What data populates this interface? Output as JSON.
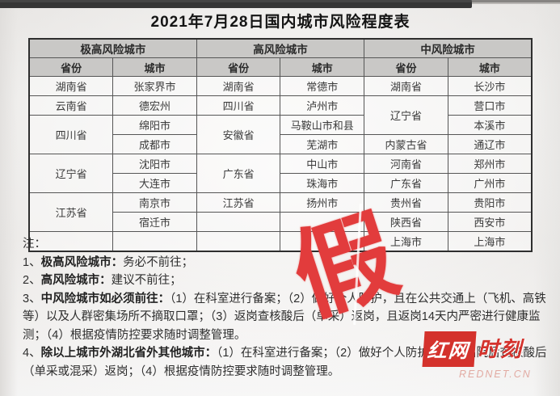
{
  "title": "2021年7月28日国内城市风险程度表",
  "table": {
    "group_headers": [
      "极高风险城市",
      "高风险城市",
      "中风险城市"
    ],
    "column_headers": [
      "省份",
      "城市",
      "省份",
      "城市",
      "省份",
      "城市"
    ],
    "rows": [
      [
        {
          "t": "湖南省"
        },
        {
          "t": "张家界市"
        },
        {
          "t": "湖南省"
        },
        {
          "t": "常德市"
        },
        {
          "t": "湖南省"
        },
        {
          "t": "长沙市"
        }
      ],
      [
        {
          "t": "云南省"
        },
        {
          "t": "德宏州"
        },
        {
          "t": "四川省"
        },
        {
          "t": "泸州市"
        },
        {
          "t": "辽宁省",
          "rs": 2
        },
        {
          "t": "营口市"
        }
      ],
      [
        {
          "t": "四川省",
          "rs": 2
        },
        {
          "t": "绵阳市"
        },
        {
          "t": "安徽省",
          "rs": 2
        },
        {
          "t": "马鞍山市和县"
        },
        null,
        {
          "t": "本溪市"
        }
      ],
      [
        null,
        {
          "t": "成都市"
        },
        null,
        {
          "t": "芜湖市"
        },
        {
          "t": "内蒙古省"
        },
        {
          "t": "通辽市"
        }
      ],
      [
        {
          "t": "辽宁省",
          "rs": 2
        },
        {
          "t": "沈阳市"
        },
        {
          "t": "广东省",
          "rs": 2
        },
        {
          "t": "中山市"
        },
        {
          "t": "河南省"
        },
        {
          "t": "郑州市"
        }
      ],
      [
        null,
        {
          "t": "大连市"
        },
        null,
        {
          "t": "珠海市"
        },
        {
          "t": "广东省"
        },
        {
          "t": "广州市"
        }
      ],
      [
        {
          "t": "江苏省",
          "rs": 2
        },
        {
          "t": "南京市"
        },
        {
          "t": "江苏省"
        },
        {
          "t": "扬州市"
        },
        {
          "t": "贵州省"
        },
        {
          "t": "贵阳市"
        }
      ],
      [
        null,
        {
          "t": "宿迁市"
        },
        {
          "t": ""
        },
        {
          "t": ""
        },
        {
          "t": "陕西省"
        },
        {
          "t": "西安市"
        }
      ],
      [
        {
          "t": ""
        },
        {
          "t": ""
        },
        {
          "t": ""
        },
        {
          "t": ""
        },
        {
          "t": "上海市"
        },
        {
          "t": "上海市"
        }
      ]
    ]
  },
  "notes": {
    "heading": "注：",
    "items": [
      {
        "num": "1、",
        "bold": "极高风险城市：",
        "rest": "务必不前往；"
      },
      {
        "num": "2、",
        "bold": "高风险城市：",
        "rest": "建议不前往；"
      },
      {
        "num": "3、",
        "bold": "中风险城市如必须前往：",
        "rest": "（1）在科室进行备案；（2）做好个人防护，且在公共交通上（飞机、高铁等）以及人群密集场所不摘取口罩；（3）返岗查核酸后（单采）返岗，且返岗14天内严密进行健康监测；（4）根据疫情防控要求随时调整管理。"
      },
      {
        "num": "4、",
        "bold": "除以上城市外湖北省外其他城市：",
        "rest": "（1）在科室进行备案；（2）做好个人防护；（3）出院后查核酸后（单采或混采）返岗；（4）根据疫情防控要求随时调整管理。"
      }
    ]
  },
  "stamp": {
    "text": "假",
    "color": "#e23c3c"
  },
  "logo": {
    "primary": "红网",
    "secondary": "时刻",
    "domain": "REDNET.CN",
    "red": "#d4322c"
  }
}
